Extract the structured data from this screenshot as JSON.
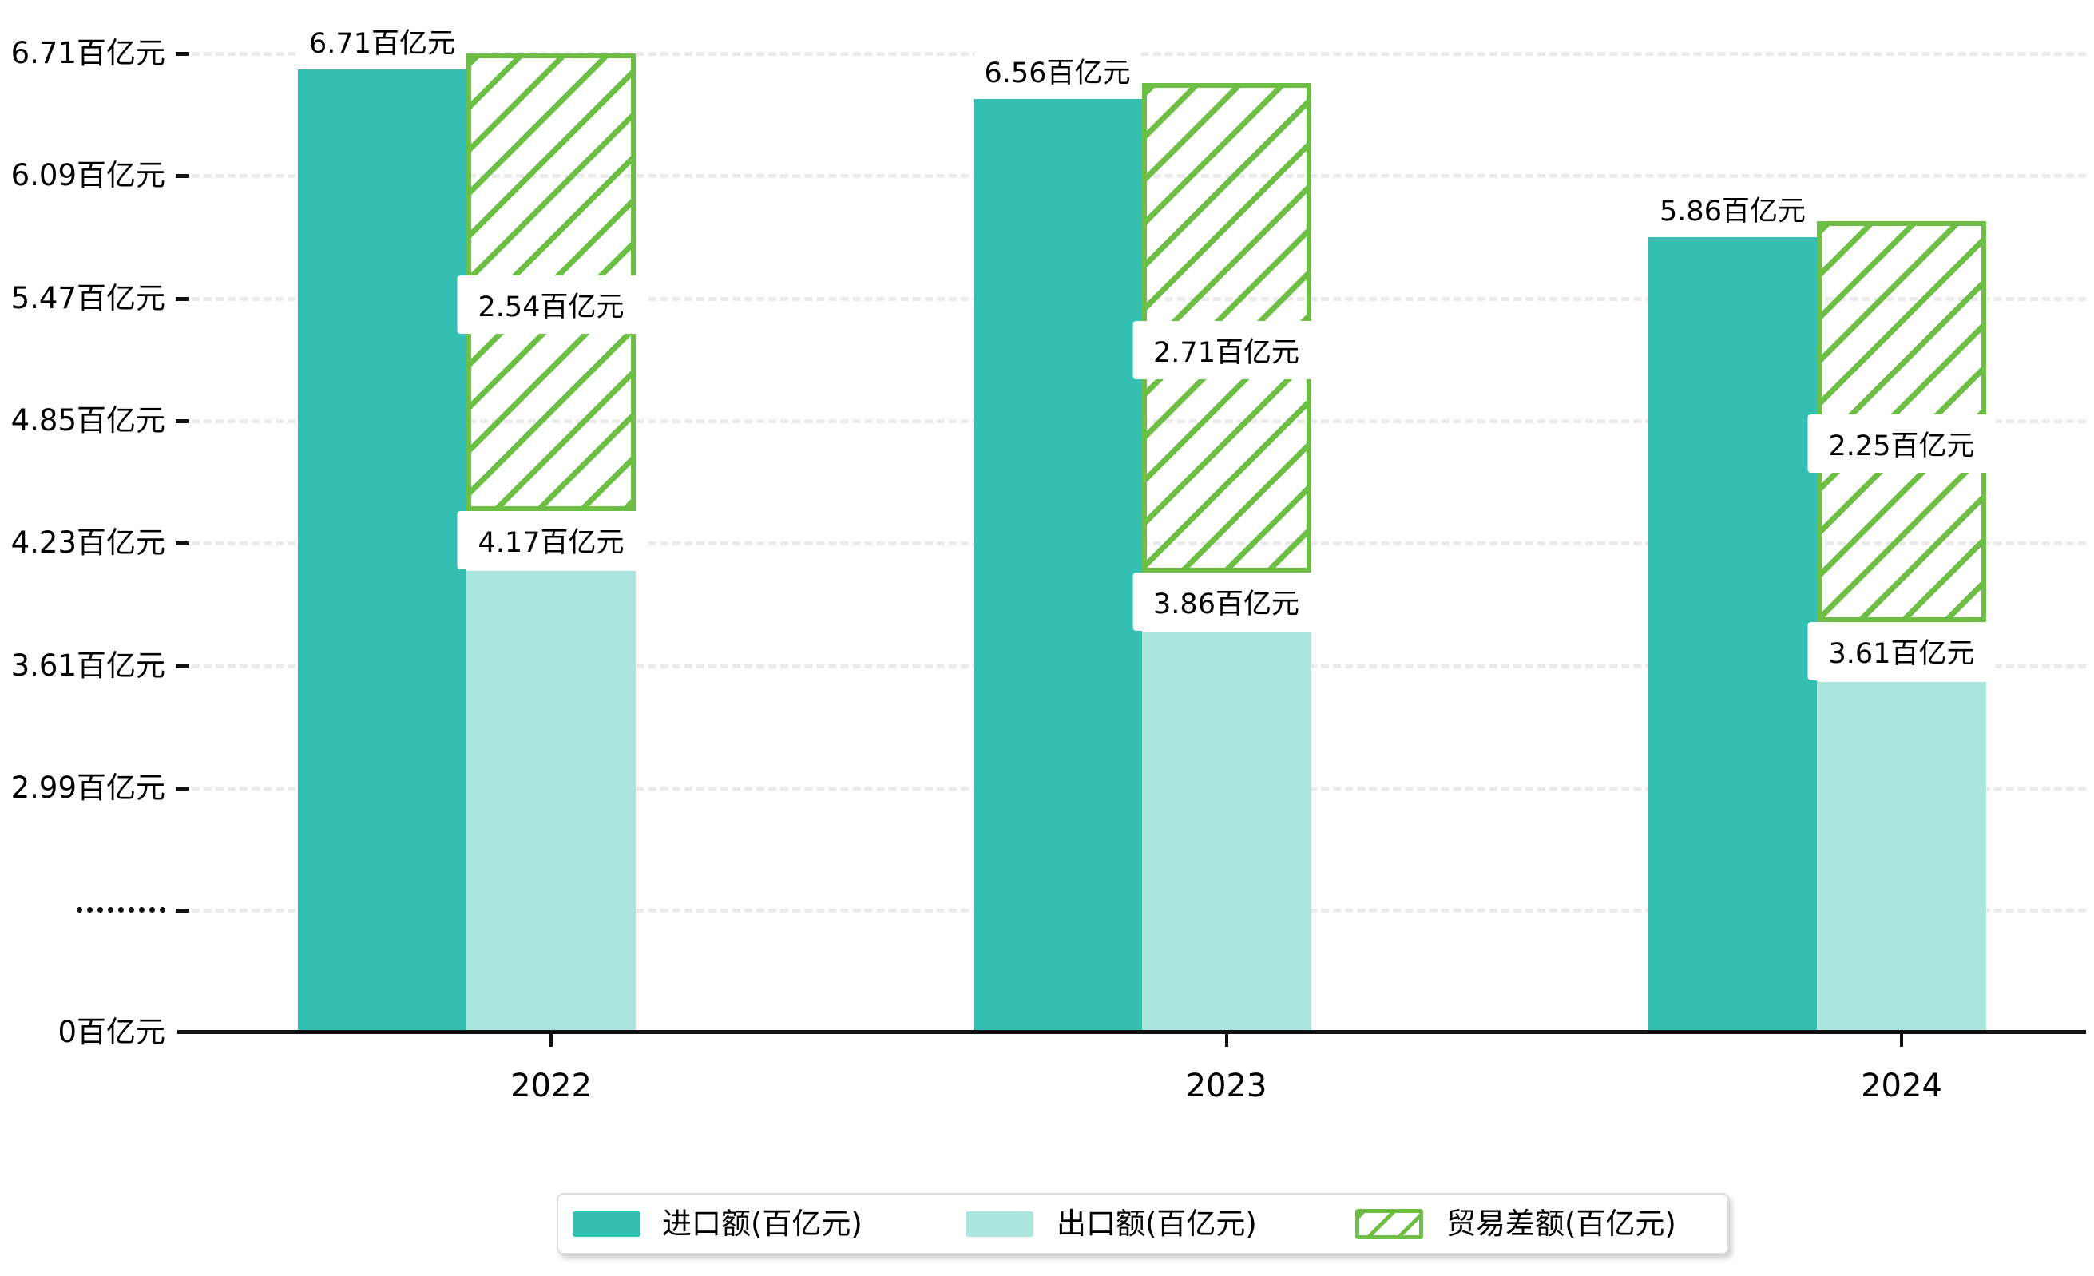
{
  "chart_data": {
    "type": "bar",
    "title": "",
    "categories": [
      "2022",
      "2023",
      "2024"
    ],
    "unit": "百亿元",
    "series": [
      {
        "name": "进口额(百亿元)",
        "role": "import",
        "values": [
          6.71,
          6.56,
          5.86
        ],
        "labels": [
          "6.71百亿元",
          "6.56百亿元",
          "5.86百亿元"
        ],
        "color": "#33bfb2",
        "style": "solid"
      },
      {
        "name": "出口额(百亿元)",
        "role": "export",
        "values": [
          4.17,
          3.86,
          3.61
        ],
        "labels": [
          "4.17百亿元",
          "3.86百亿元",
          "3.61百亿元"
        ],
        "color": "#abe6de",
        "style": "solid"
      },
      {
        "name": "贸易差额(百亿元)",
        "role": "trade-balance",
        "values": [
          2.54,
          2.71,
          2.25
        ],
        "labels": [
          "2.54百亿元",
          "2.71百亿元",
          "2.25百亿元"
        ],
        "color": "#6cbe45",
        "style": "diagonal-hatch"
      }
    ],
    "y_axis": {
      "ticks": [
        {
          "label": "6.71百亿元",
          "value": 6.71
        },
        {
          "label": "6.09百亿元",
          "value": 6.09
        },
        {
          "label": "5.47百亿元",
          "value": 5.47
        },
        {
          "label": "4.85百亿元",
          "value": 4.85
        },
        {
          "label": "4.23百亿元",
          "value": 4.23
        },
        {
          "label": "3.61百亿元",
          "value": 3.61
        },
        {
          "label": "2.99百亿元",
          "value": 2.99
        },
        {
          "label": "·········",
          "axis_break": true
        },
        {
          "label": "0百亿元",
          "value": 0,
          "zero": true
        }
      ],
      "axis_break": true,
      "grid": "dashed"
    },
    "legend": {
      "position": "bottom",
      "items": [
        "进口额(百亿元)",
        "出口额(百亿元)",
        "贸易差额(百亿元)"
      ]
    },
    "colors": {
      "import": "#33bfb2",
      "export": "#abe6de",
      "trade_balance": "#6cbe45",
      "gridline": "#ebebeb",
      "axis": "#111111",
      "label_box_bg": "#ffffff",
      "text": "#000000",
      "legend_border": "#dcdcdc"
    }
  }
}
